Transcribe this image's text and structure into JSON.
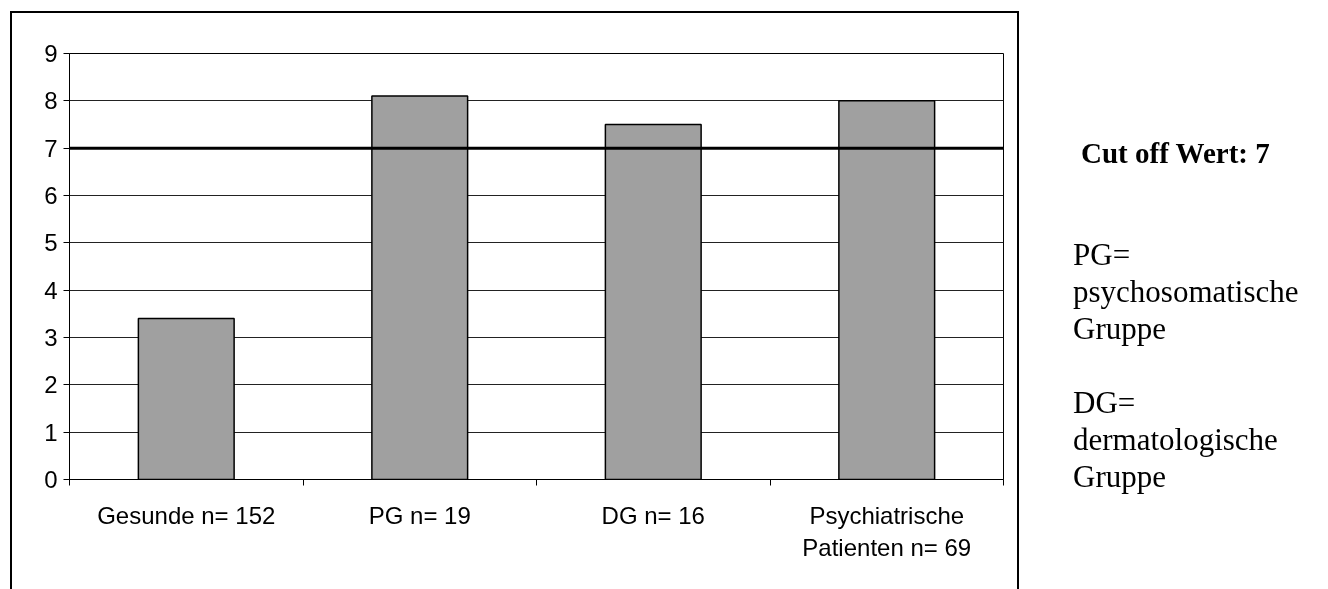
{
  "chart_data": {
    "type": "bar",
    "categories": [
      "Gesunde n= 152",
      "PG n= 19",
      "DG n= 16",
      "Psychiatrische Patienten n= 69"
    ],
    "values": [
      3.4,
      8.1,
      7.5,
      8.0
    ],
    "color": "#a0a0a0",
    "ylim": [
      0,
      9
    ],
    "yticks": [
      0,
      1,
      2,
      3,
      4,
      5,
      6,
      7,
      8,
      9
    ],
    "grid": "y",
    "ref_lines": [
      {
        "axis": "y",
        "value": 7,
        "label": "Cut off Wert: 7",
        "color": "#000000"
      }
    ],
    "annotations": [
      "PG= psychosomatische Gruppe",
      "DG= dermatologische Gruppe"
    ]
  }
}
